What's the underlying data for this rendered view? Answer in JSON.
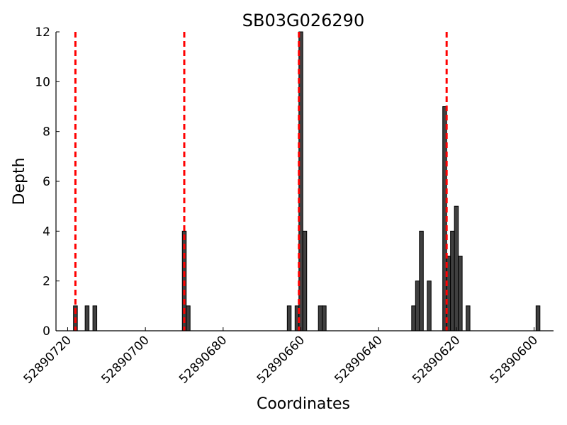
{
  "chart_data": {
    "type": "bar",
    "title": "SB03G026290",
    "xlabel": "Coordinates",
    "ylabel": "Depth",
    "x_reversed": true,
    "xlim": [
      52890723,
      52890595
    ],
    "ylim": [
      0,
      12
    ],
    "x_ticks": [
      52890720,
      52890700,
      52890680,
      52890660,
      52890640,
      52890620,
      52890600
    ],
    "y_ticks": [
      0,
      2,
      4,
      6,
      8,
      10,
      12
    ],
    "bar_width": 1,
    "bar_color": "#404040",
    "bar_edge_color": "#000000",
    "reference_line_color": "#ff0000",
    "reference_lines": [
      52890718,
      52890690,
      52890660.5,
      52890622.5
    ],
    "bars": [
      {
        "x": 52890718,
        "y": 1
      },
      {
        "x": 52890715,
        "y": 1
      },
      {
        "x": 52890713,
        "y": 1
      },
      {
        "x": 52890690,
        "y": 4
      },
      {
        "x": 52890689,
        "y": 1
      },
      {
        "x": 52890663,
        "y": 1
      },
      {
        "x": 52890661,
        "y": 1
      },
      {
        "x": 52890660,
        "y": 12
      },
      {
        "x": 52890659,
        "y": 4
      },
      {
        "x": 52890655,
        "y": 1
      },
      {
        "x": 52890654,
        "y": 1
      },
      {
        "x": 52890631,
        "y": 1
      },
      {
        "x": 52890630,
        "y": 2
      },
      {
        "x": 52890629,
        "y": 4
      },
      {
        "x": 52890627,
        "y": 2
      },
      {
        "x": 52890623,
        "y": 9
      },
      {
        "x": 52890622,
        "y": 3
      },
      {
        "x": 52890621,
        "y": 4
      },
      {
        "x": 52890620,
        "y": 5
      },
      {
        "x": 52890619,
        "y": 3
      },
      {
        "x": 52890617,
        "y": 1
      },
      {
        "x": 52890599,
        "y": 1
      }
    ]
  }
}
